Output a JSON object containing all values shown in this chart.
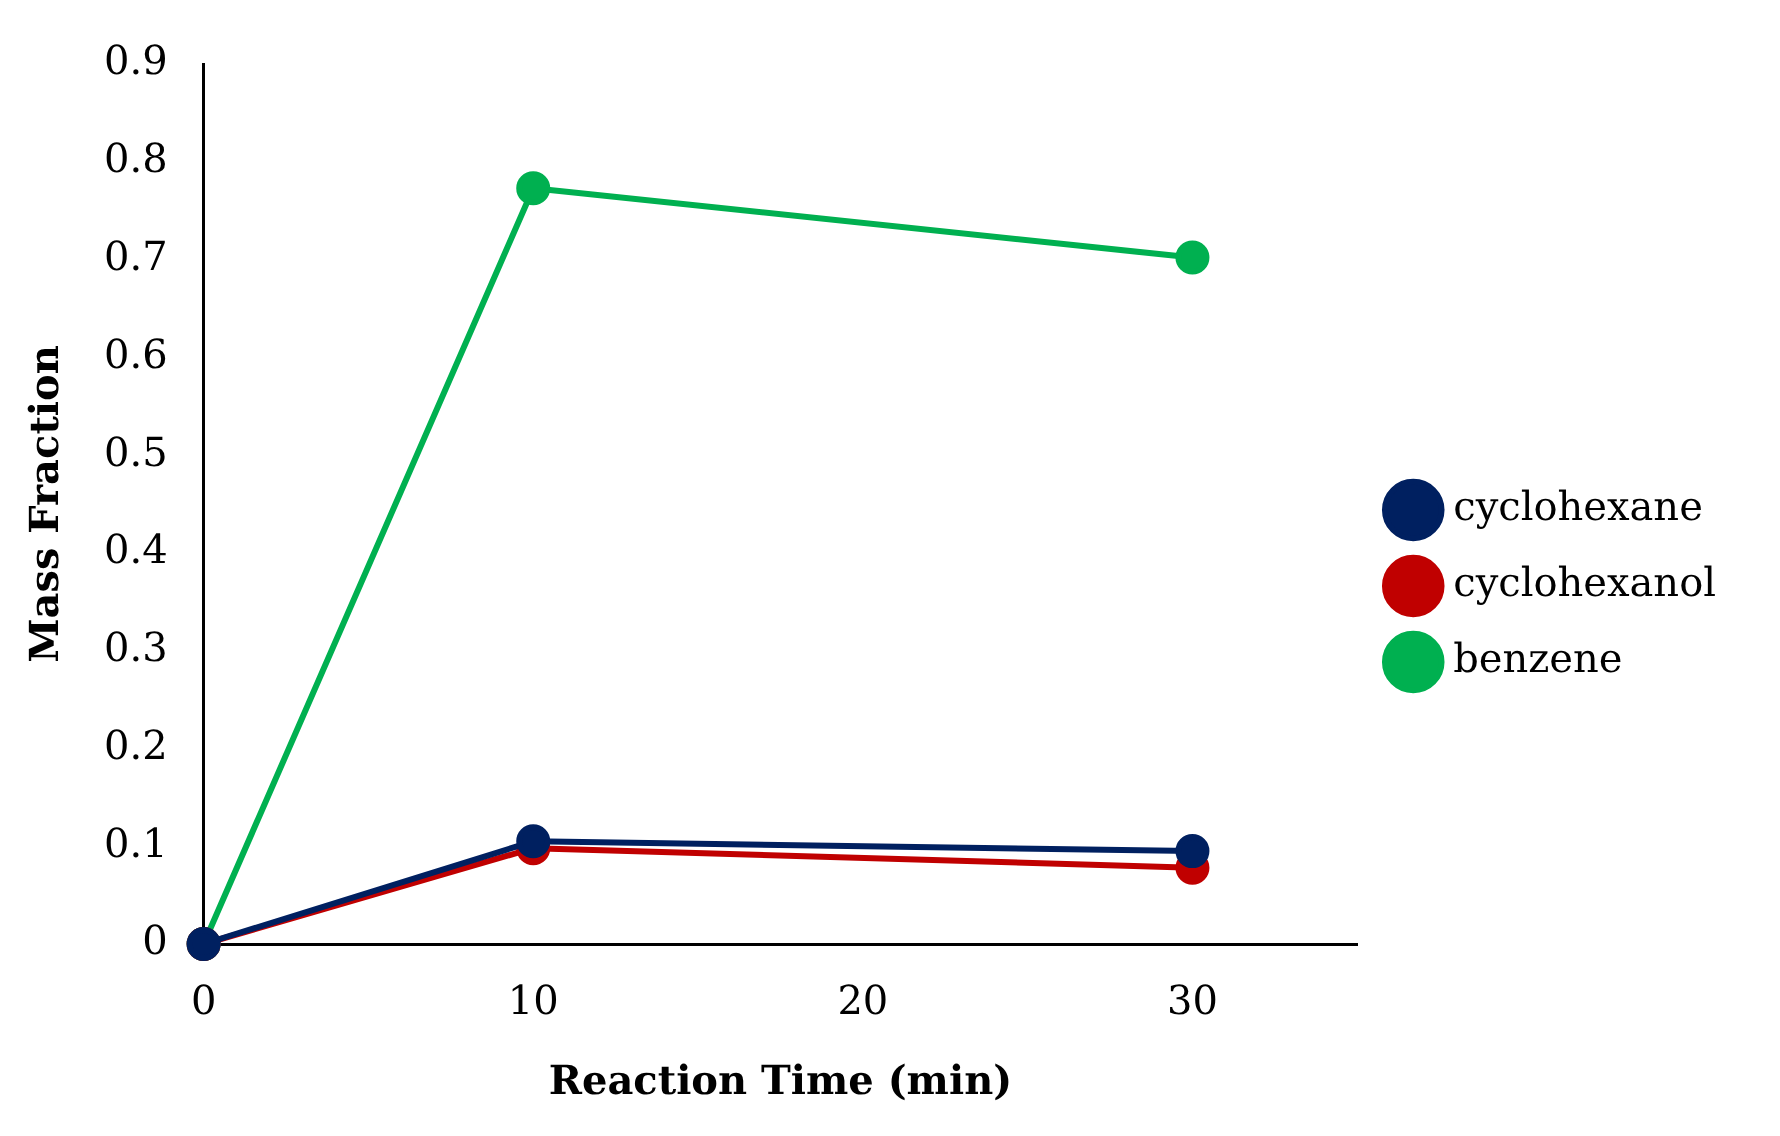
{
  "chart_data": {
    "type": "line",
    "xlabel": "Reaction Time (min)",
    "ylabel": "Mass Fraction",
    "x": [
      0,
      10,
      30
    ],
    "series": [
      {
        "name": "cyclohexane",
        "color": "#002060",
        "values": [
          0,
          0.105,
          0.095
        ]
      },
      {
        "name": "cyclohexanol",
        "color": "#c00000",
        "values": [
          0,
          0.098,
          0.078
        ]
      },
      {
        "name": "benzene",
        "color": "#00b050",
        "values": [
          0,
          0.773,
          0.702
        ]
      }
    ],
    "xlim": [
      0,
      35
    ],
    "xticks": [
      0,
      10,
      20,
      30
    ],
    "ylim": [
      0,
      0.9
    ],
    "yticks": [
      0,
      0.1,
      0.2,
      0.3,
      0.4,
      0.5,
      0.6,
      0.7,
      0.8,
      0.9
    ],
    "grid": false,
    "legend": "right",
    "marker": "circle",
    "line_style": "solid"
  }
}
